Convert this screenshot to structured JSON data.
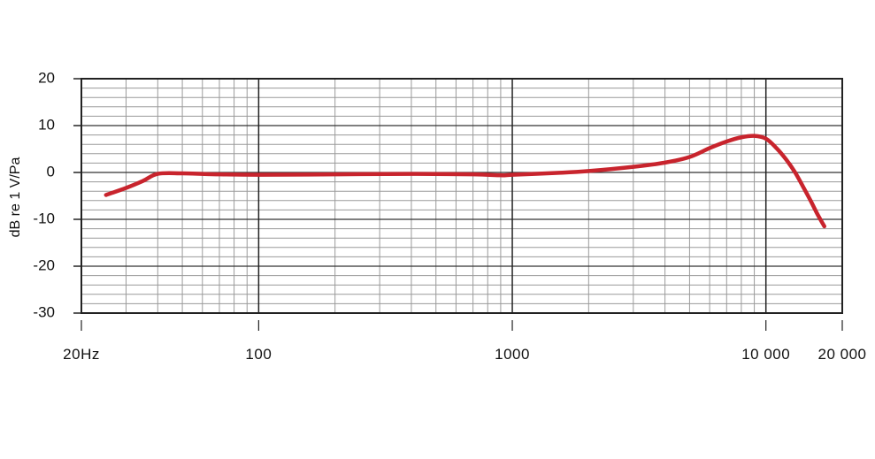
{
  "chart_data": {
    "type": "line",
    "title": "",
    "xlabel": "",
    "ylabel": "dB re 1 V/Pa",
    "x_scale": "log",
    "xlim": [
      20,
      20000
    ],
    "ylim": [
      -30,
      20
    ],
    "grid": true,
    "y_ticks": [
      {
        "value": 20,
        "label": "20"
      },
      {
        "value": 10,
        "label": "10"
      },
      {
        "value": 0,
        "label": "0"
      },
      {
        "value": -10,
        "label": "-10"
      },
      {
        "value": -20,
        "label": "-20"
      },
      {
        "value": -30,
        "label": "-30"
      }
    ],
    "x_ticks": [
      {
        "value": 20,
        "label": "20Hz"
      },
      {
        "value": 100,
        "label": "100"
      },
      {
        "value": 1000,
        "label": "1000"
      },
      {
        "value": 10000,
        "label": "10 000"
      },
      {
        "value": 20000,
        "label": "20 000"
      }
    ],
    "series": [
      {
        "color": "#c8242d",
        "x": [
          25,
          30,
          35,
          40,
          50,
          70,
          100,
          200,
          400,
          700,
          900,
          1000,
          1500,
          2000,
          3000,
          4000,
          5000,
          6000,
          7000,
          8000,
          9000,
          10000,
          11000,
          12000,
          13000,
          14000,
          15000,
          16000,
          17000
        ],
        "y": [
          -4.8,
          -3.3,
          -1.8,
          -0.3,
          -0.2,
          -0.4,
          -0.5,
          -0.4,
          -0.3,
          -0.4,
          -0.6,
          -0.5,
          -0.1,
          0.3,
          1.2,
          2.1,
          3.3,
          5.2,
          6.6,
          7.5,
          7.8,
          7.2,
          5.2,
          2.8,
          0.1,
          -3.0,
          -6.0,
          -9.0,
          -11.5
        ]
      }
    ]
  }
}
